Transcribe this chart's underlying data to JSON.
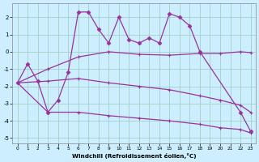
{
  "xlabel": "Windchill (Refroidissement éolien,°C)",
  "bg_color": "#cceeff",
  "line_color": "#993399",
  "grid_color": "#99ccbb",
  "xlim": [
    -0.5,
    23.5
  ],
  "ylim": [
    -5.3,
    2.8
  ],
  "xticks": [
    0,
    1,
    2,
    3,
    4,
    5,
    6,
    7,
    8,
    9,
    10,
    11,
    12,
    13,
    14,
    15,
    16,
    17,
    18,
    19,
    20,
    21,
    22,
    23
  ],
  "yticks": [
    -5,
    -4,
    -3,
    -2,
    -1,
    0,
    1,
    2
  ],
  "line1_x": [
    0,
    1,
    2,
    3,
    4,
    5,
    6,
    7,
    8,
    9,
    10,
    11,
    12,
    13,
    14,
    15,
    16,
    17,
    18,
    22,
    23
  ],
  "line1_y": [
    -1.8,
    -0.7,
    -1.7,
    -3.5,
    -2.8,
    -1.2,
    2.3,
    2.3,
    1.3,
    0.5,
    2.0,
    0.7,
    0.5,
    0.8,
    0.5,
    2.2,
    2.0,
    1.5,
    0.0,
    -3.5,
    -4.6
  ],
  "line2_x": [
    0,
    3,
    6,
    9,
    12,
    15,
    18,
    20,
    22,
    23
  ],
  "line2_y": [
    -1.8,
    -1.0,
    -0.3,
    0.0,
    -0.15,
    -0.2,
    -0.1,
    -0.1,
    0.0,
    -0.05
  ],
  "line3_x": [
    0,
    3,
    6,
    9,
    12,
    15,
    18,
    20,
    22,
    23
  ],
  "line3_y": [
    -1.8,
    -1.7,
    -1.55,
    -1.8,
    -2.0,
    -2.2,
    -2.55,
    -2.8,
    -3.1,
    -3.5
  ],
  "line4_x": [
    0,
    3,
    6,
    9,
    12,
    15,
    18,
    20,
    22,
    23
  ],
  "line4_y": [
    -1.8,
    -3.5,
    -3.5,
    -3.7,
    -3.85,
    -4.0,
    -4.2,
    -4.4,
    -4.5,
    -4.7
  ]
}
